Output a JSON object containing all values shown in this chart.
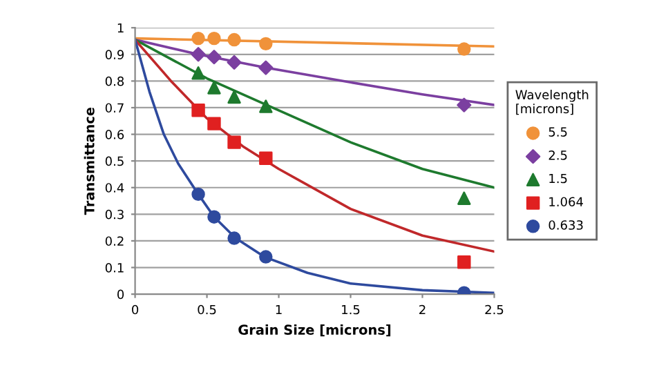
{
  "chart_data": {
    "type": "scatter",
    "xlabel": "Grain Size [microns]",
    "ylabel": "Transmittance",
    "legend_title": "Wavelength\n[microns]",
    "legend": "right",
    "grid": "y",
    "xlim": [
      0,
      2.5
    ],
    "ylim": [
      0,
      1
    ],
    "xticks": [
      0,
      0.5,
      1,
      1.5,
      2,
      2.5
    ],
    "yticks": [
      0,
      0.1,
      0.2,
      0.3,
      0.4,
      0.5,
      0.6,
      0.7,
      0.8,
      0.9,
      1
    ],
    "x": [
      0.44,
      0.55,
      0.69,
      0.91,
      2.29
    ],
    "series": [
      {
        "name": "5.5",
        "color": "#f0923a",
        "marker": "circle",
        "values": [
          0.96,
          0.96,
          0.955,
          0.94,
          0.92
        ]
      },
      {
        "name": "2.5",
        "color": "#7b3fa0",
        "marker": "diamond",
        "values": [
          0.9,
          0.89,
          0.87,
          0.85,
          0.71
        ]
      },
      {
        "name": "1.5",
        "color": "#1e7a2e",
        "marker": "triangle",
        "values": [
          0.83,
          0.775,
          0.74,
          0.705,
          0.36
        ]
      },
      {
        "name": "1.064",
        "color": "#e02020",
        "marker": "square",
        "values": [
          0.69,
          0.64,
          0.57,
          0.51,
          0.12
        ]
      },
      {
        "name": "0.633",
        "color": "#2e4a9e",
        "marker": "circle",
        "values": [
          0.375,
          0.29,
          0.21,
          0.14,
          0.005
        ]
      },
      {
        "type": "line",
        "color": "#f0923a",
        "x": [
          0,
          2.5
        ],
        "values": [
          0.96,
          0.93
        ]
      },
      {
        "type": "line",
        "color": "#7b3fa0",
        "x": [
          0,
          0.44,
          0.91,
          1.5,
          2,
          2.5
        ],
        "values": [
          0.955,
          0.9,
          0.85,
          0.795,
          0.75,
          0.71
        ]
      },
      {
        "type": "line",
        "color": "#1e7a2e",
        "x": [
          0,
          0.5,
          1,
          1.5,
          2,
          2.5
        ],
        "values": [
          0.955,
          0.81,
          0.69,
          0.57,
          0.47,
          0.4
        ]
      },
      {
        "type": "line",
        "color": "#c0282a",
        "x": [
          0,
          0.25,
          0.5,
          0.75,
          1,
          1.5,
          2,
          2.5
        ],
        "values": [
          0.955,
          0.8,
          0.66,
          0.555,
          0.47,
          0.32,
          0.22,
          0.16
        ]
      },
      {
        "type": "line",
        "color": "#2e4a9e",
        "x": [
          0,
          0.1,
          0.2,
          0.3,
          0.44,
          0.55,
          0.7,
          0.9,
          1.2,
          1.5,
          2,
          2.5
        ],
        "values": [
          0.955,
          0.76,
          0.6,
          0.49,
          0.375,
          0.29,
          0.21,
          0.14,
          0.08,
          0.04,
          0.015,
          0.005
        ]
      }
    ]
  }
}
